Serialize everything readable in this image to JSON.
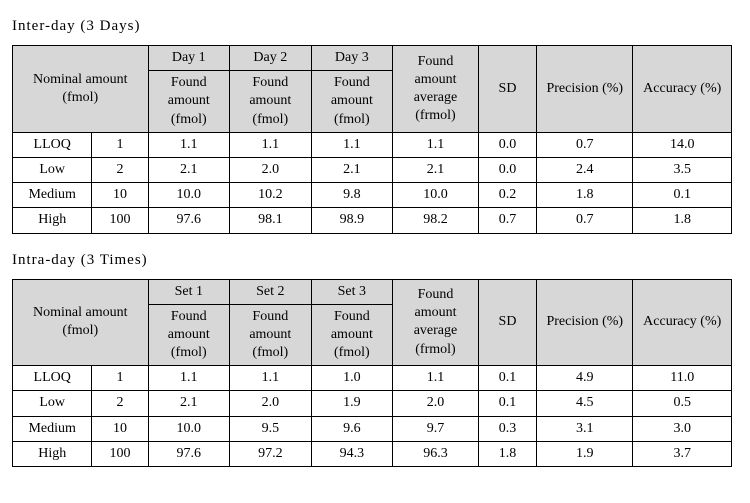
{
  "tables": [
    {
      "title": "Inter-day (3 Days)",
      "setNames": [
        "Day 1",
        "Day 2",
        "Day 3"
      ],
      "nominalHeader": "Nominal amount (fmol)",
      "subHeader": "Found amount (fmol)",
      "avgHeader": "Found amount average (frmol)",
      "sdHeader": "SD",
      "precHeader": "Precision (%)",
      "accHeader": "Accuracy (%)",
      "rows": [
        {
          "label": "LLOQ",
          "nom": "1",
          "s1": "1.1",
          "s2": "1.1",
          "s3": "1.1",
          "avg": "1.1",
          "sd": "0.0",
          "prec": "0.7",
          "acc": "14.0"
        },
        {
          "label": "Low",
          "nom": "2",
          "s1": "2.1",
          "s2": "2.0",
          "s3": "2.1",
          "avg": "2.1",
          "sd": "0.0",
          "prec": "2.4",
          "acc": "3.5"
        },
        {
          "label": "Medium",
          "nom": "10",
          "s1": "10.0",
          "s2": "10.2",
          "s3": "9.8",
          "avg": "10.0",
          "sd": "0.2",
          "prec": "1.8",
          "acc": "0.1"
        },
        {
          "label": "High",
          "nom": "100",
          "s1": "97.6",
          "s2": "98.1",
          "s3": "98.9",
          "avg": "98.2",
          "sd": "0.7",
          "prec": "0.7",
          "acc": "1.8"
        }
      ]
    },
    {
      "title": "Intra-day (3 Times)",
      "setNames": [
        "Set 1",
        "Set 2",
        "Set 3"
      ],
      "nominalHeader": "Nominal amount (fmol)",
      "subHeader": "Found amount (fmol)",
      "avgHeader": "Found amount average (frmol)",
      "sdHeader": "SD",
      "precHeader": "Precision (%)",
      "accHeader": "Accuracy (%)",
      "rows": [
        {
          "label": "LLOQ",
          "nom": "1",
          "s1": "1.1",
          "s2": "1.1",
          "s3": "1.0",
          "avg": "1.1",
          "sd": "0.1",
          "prec": "4.9",
          "acc": "11.0"
        },
        {
          "label": "Low",
          "nom": "2",
          "s1": "2.1",
          "s2": "2.0",
          "s3": "1.9",
          "avg": "2.0",
          "sd": "0.1",
          "prec": "4.5",
          "acc": "0.5"
        },
        {
          "label": "Medium",
          "nom": "10",
          "s1": "10.0",
          "s2": "9.5",
          "s3": "9.6",
          "avg": "9.7",
          "sd": "0.3",
          "prec": "3.1",
          "acc": "3.0"
        },
        {
          "label": "High",
          "nom": "100",
          "s1": "97.6",
          "s2": "97.2",
          "s3": "94.3",
          "avg": "96.3",
          "sd": "1.8",
          "prec": "1.9",
          "acc": "3.7"
        }
      ]
    }
  ],
  "style": {
    "header_bg": "#d7d7d7",
    "cell_bg": "#ffffff",
    "border_color": "#000000",
    "font_family": "Times New Roman",
    "title_fontsize": 15,
    "cell_fontsize": 14
  }
}
